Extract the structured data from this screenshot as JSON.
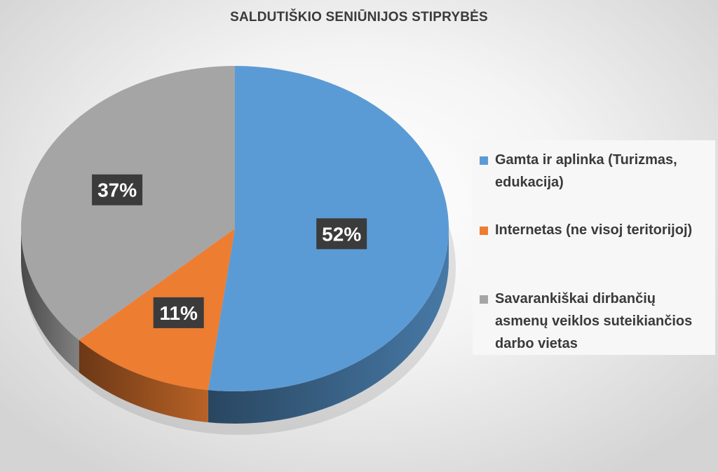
{
  "chart_data": {
    "type": "pie",
    "title": "SALDUTIŠKIO SENIŪNIJOS STIPRYBĖS",
    "categories": [
      "Gamta ir aplinka (Turizmas, edukacija)",
      "Internetas (ne visoj teritorijoj)",
      "Savarankiškai dirbančių asmenų veiklos suteikiančios darbo vietas"
    ],
    "values": [
      52,
      11,
      37
    ],
    "data_labels": [
      "52%",
      "11%",
      "37%"
    ],
    "colors": [
      "#5b9bd5",
      "#ed7d31",
      "#a5a5a5"
    ],
    "legend_position": "right",
    "style": "3d"
  }
}
